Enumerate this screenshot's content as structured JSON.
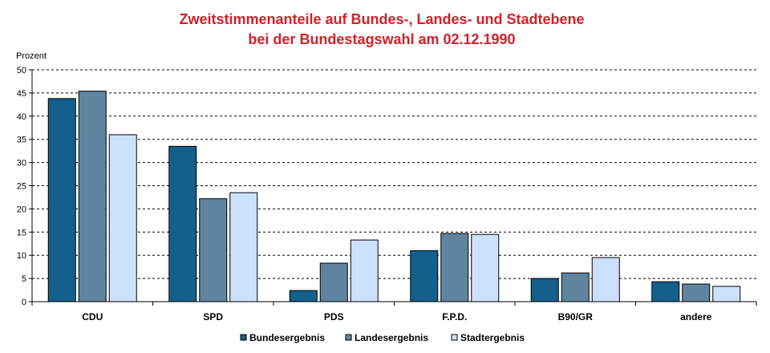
{
  "chart_data": {
    "type": "bar",
    "title": [
      "Zweitstimmenanteile auf Bundes-, Landes- und Stadtebene",
      "bei der Bundestagswahl am 02.12.1990"
    ],
    "ylabel": "Prozent",
    "xlabel": "",
    "ylim": [
      0,
      50
    ],
    "yticks": [
      0,
      5,
      10,
      15,
      20,
      25,
      30,
      35,
      40,
      45,
      50
    ],
    "grid": true,
    "legend_position": "bottom",
    "categories": [
      "CDU",
      "SPD",
      "PDS",
      "F.P.D.",
      "B90/GR",
      "andere"
    ],
    "series": [
      {
        "name": "Bundesergebnis",
        "color": "#14608c",
        "values": [
          43.8,
          33.5,
          2.4,
          11.0,
          5.0,
          4.3
        ]
      },
      {
        "name": "Landesergebnis",
        "color": "#5f84a0",
        "values": [
          45.4,
          22.2,
          8.3,
          14.7,
          6.2,
          3.8
        ]
      },
      {
        "name": "Stadtergebnis",
        "color": "#cce1fb",
        "values": [
          36.0,
          23.5,
          13.3,
          14.5,
          9.5,
          3.3
        ]
      }
    ],
    "colors": {
      "title": "#d42027",
      "grid": "#000000",
      "text": "#000000"
    }
  }
}
